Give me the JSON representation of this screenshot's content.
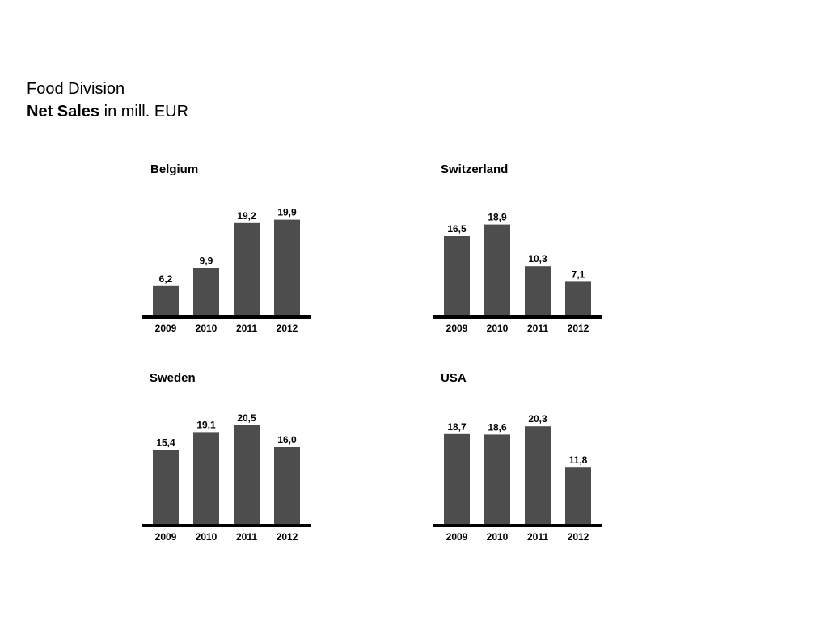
{
  "header": {
    "line1": "Food Division",
    "line2_bold": "Net Sales",
    "line2_rest": " in mill. EUR"
  },
  "colors": {
    "bar": "#4d4d4d",
    "baseline": "#000000"
  },
  "chart_data": [
    {
      "type": "bar",
      "title": "Belgium",
      "categories": [
        "2009",
        "2010",
        "2011",
        "2012"
      ],
      "values": [
        6.2,
        9.9,
        19.2,
        19.9
      ],
      "value_labels": [
        "6,2",
        "9,9",
        "19,2",
        "19,9"
      ],
      "xlabel": "",
      "ylabel": "",
      "ylim": [
        0,
        22
      ],
      "grid": false
    },
    {
      "type": "bar",
      "title": "Switzerland",
      "categories": [
        "2009",
        "2010",
        "2011",
        "2012"
      ],
      "values": [
        16.5,
        18.9,
        10.3,
        7.1
      ],
      "value_labels": [
        "16,5",
        "18,9",
        "10,3",
        "7,1"
      ],
      "xlabel": "",
      "ylabel": "",
      "ylim": [
        0,
        22
      ],
      "grid": false
    },
    {
      "type": "bar",
      "title": "Sweden",
      "categories": [
        "2009",
        "2010",
        "2011",
        "2012"
      ],
      "values": [
        15.4,
        19.1,
        20.5,
        16.0
      ],
      "value_labels": [
        "15,4",
        "19,1",
        "20,5",
        "16,0"
      ],
      "xlabel": "",
      "ylabel": "",
      "ylim": [
        0,
        22
      ],
      "grid": false
    },
    {
      "type": "bar",
      "title": "USA",
      "categories": [
        "2009",
        "2010",
        "2011",
        "2012"
      ],
      "values": [
        18.7,
        18.6,
        20.3,
        11.8
      ],
      "value_labels": [
        "18,7",
        "18,6",
        "20,3",
        "11,8"
      ],
      "xlabel": "",
      "ylabel": "",
      "ylim": [
        0,
        22
      ],
      "grid": false
    }
  ]
}
